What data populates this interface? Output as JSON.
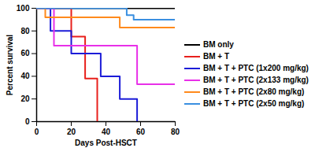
{
  "chart_data": {
    "type": "line",
    "xlabel": "Days Post-HSCT",
    "ylabel": "Percent survival",
    "xlim": [
      0,
      80
    ],
    "xticks": [
      0,
      20,
      40,
      60,
      80
    ],
    "ylim": [
      0,
      100
    ],
    "yticks": [
      0,
      20,
      40,
      60,
      80,
      100
    ],
    "legend": "right",
    "line_style": "step",
    "series": [
      {
        "name": "BM only",
        "color": "#000000",
        "x": [
          0,
          80
        ],
        "values": [
          100,
          100
        ]
      },
      {
        "name": "BM + T",
        "color": "#e8201c",
        "x": [
          0,
          20,
          28,
          35
        ],
        "values": [
          100,
          75,
          38,
          0
        ]
      },
      {
        "name": "BM + T + PTC (1x200 mg/kg)",
        "color": "#1c1cd8",
        "x": [
          0,
          8,
          20,
          37,
          48,
          58
        ],
        "values": [
          100,
          80,
          60,
          40,
          20,
          0
        ]
      },
      {
        "name": "BM + T + PTC (2x133 mg/kg)",
        "color": "#e830e8",
        "x": [
          0,
          10,
          58,
          80
        ],
        "values": [
          100,
          67,
          33,
          33
        ]
      },
      {
        "name": "BM + T + PTC (2x80 mg/kg)",
        "color": "#ff8a1c",
        "x": [
          0,
          5,
          48,
          80
        ],
        "values": [
          100,
          92,
          83,
          83
        ]
      },
      {
        "name": "BM + T + PTC (2x50 mg/kg)",
        "color": "#3a8fe0",
        "x": [
          0,
          52,
          56,
          80
        ],
        "values": [
          100,
          94,
          90,
          90
        ]
      }
    ]
  }
}
